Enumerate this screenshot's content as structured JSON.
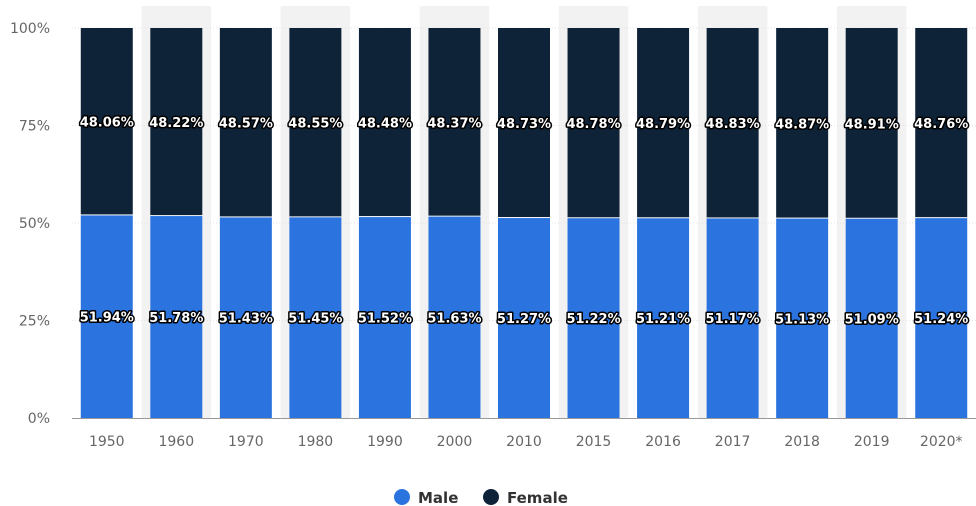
{
  "chart_data": {
    "type": "bar",
    "stacked": true,
    "categories": [
      "1950",
      "1960",
      "1970",
      "1980",
      "1990",
      "2000",
      "2010",
      "2015",
      "2016",
      "2017",
      "2018",
      "2019",
      "2020*"
    ],
    "series": [
      {
        "name": "Male",
        "color": "#2b74df",
        "values": [
          51.94,
          51.78,
          51.43,
          51.45,
          51.52,
          51.63,
          51.27,
          51.22,
          51.21,
          51.17,
          51.13,
          51.09,
          51.24
        ],
        "labels": [
          "51.94%",
          "51.78%",
          "51.43%",
          "51.45%",
          "51.52%",
          "51.63%",
          "51.27%",
          "51.22%",
          "51.21%",
          "51.17%",
          "51.13%",
          "51.09%",
          "51.24%"
        ]
      },
      {
        "name": "Female",
        "color": "#0e2238",
        "values": [
          48.06,
          48.22,
          48.57,
          48.55,
          48.48,
          48.37,
          48.73,
          48.78,
          48.79,
          48.83,
          48.87,
          48.91,
          48.76
        ],
        "labels": [
          "48.06%",
          "48.22%",
          "48.57%",
          "48.55%",
          "48.48%",
          "48.37%",
          "48.73%",
          "48.78%",
          "48.79%",
          "48.83%",
          "48.87%",
          "48.91%",
          "48.76%"
        ]
      }
    ],
    "yticks": [
      "0%",
      "25%",
      "50%",
      "75%",
      "100%"
    ],
    "ylim": [
      0,
      100
    ],
    "title": "",
    "xlabel": "",
    "ylabel": "",
    "grid": true,
    "legend_position": "bottom-center",
    "colors": {
      "male": "#2b74df",
      "female": "#0e2238",
      "column_band": "#f2f2f2",
      "axis": "#999999"
    }
  }
}
